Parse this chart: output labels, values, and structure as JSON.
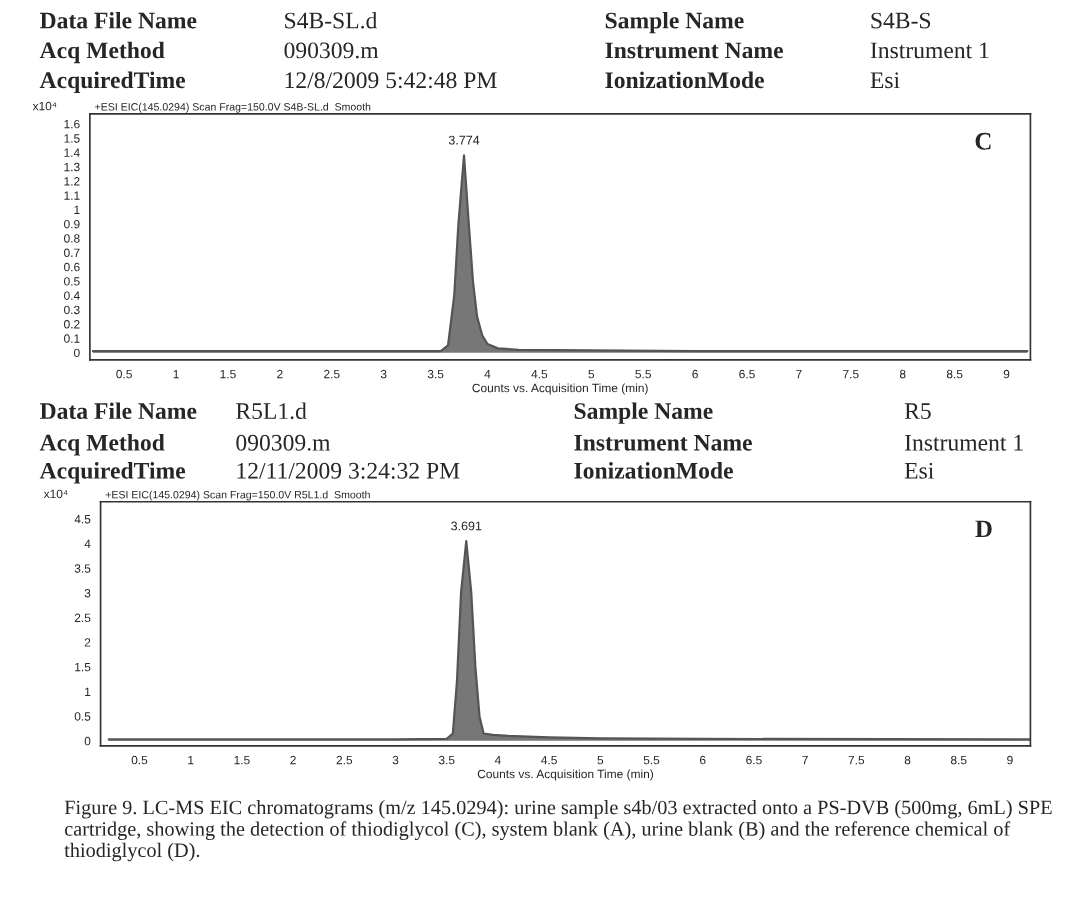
{
  "chart_data": [
    {
      "type": "area",
      "title": "+ESI EIC(145.0294) Scan Frag=150.0V S4B-SL.d  Smooth",
      "xlabel": "Counts vs. Acquisition Time (min)",
      "ylabel": "x10⁴",
      "annotations": [
        "Data File Name",
        "S4B-SL.d",
        "Sample Name",
        "S4B-S",
        "Acq Method",
        "090309.m",
        "Instrument Name",
        "Instrument 1",
        "AcquiredTime",
        "12/8/2009 5:42:48 PM",
        "IonizationMode",
        "Esi",
        "C",
        {
          "text": "3.774",
          "x": 3.774,
          "y": 1.38
        }
      ],
      "series": [
        {
          "color": "#555555",
          "x": [
            0.2,
            1.5,
            3.0,
            3.55,
            3.62,
            3.68,
            3.72,
            3.774,
            3.82,
            3.86,
            3.9,
            3.95,
            4.0,
            4.1,
            4.3,
            6.0,
            9.2
          ],
          "values": [
            0.01,
            0.01,
            0.01,
            0.01,
            0.05,
            0.4,
            0.9,
            1.38,
            0.9,
            0.5,
            0.25,
            0.12,
            0.06,
            0.03,
            0.02,
            0.01,
            0.01
          ]
        }
      ],
      "xlim": [
        0.17,
        9.23
      ],
      "xticks": [
        0.5,
        1,
        1.5,
        2,
        2.5,
        3,
        3.5,
        4,
        4.5,
        5,
        5.5,
        6,
        6.5,
        7,
        7.5,
        8,
        8.5,
        9
      ],
      "ylim": [
        -0.05,
        1.67
      ],
      "yticks": [
        0,
        0.1,
        0.2,
        0.3,
        0.4,
        0.5,
        0.6,
        0.7,
        0.8,
        0.9,
        1,
        1.1,
        1.2,
        1.3,
        1.4,
        1.5,
        1.6
      ],
      "grid": false,
      "marker": "none"
    },
    {
      "type": "area",
      "title": "+ESI EIC(145.0294) Scan Frag=150.0V R5L1.d  Smooth",
      "xlabel": "Counts vs. Acquisition Time (min)",
      "ylabel": "x10⁴",
      "annotations": [
        "Data File Name",
        "R5L1.d",
        "Sample Name",
        "R5",
        "Acq Method",
        "090309.m",
        "Instrument Name",
        "Instrument 1",
        "AcquiredTime",
        "12/11/2009 3:24:32 PM",
        "IonizationMode",
        "Esi",
        "D",
        "Figure 9. LC-MS EIC chromatograms (m/z 145.0294): urine sample s4b/03 extracted onto a PS-DVB (500mg, 6mL) SPE cartridge, showing the detection of thiodiglycol (C), system blank (A), urine blank (B) and the reference chemical of thiodiglycol (D).",
        {
          "text": "3.691",
          "x": 3.691,
          "y": 4.05
        }
      ],
      "series": [
        {
          "color": "#555555",
          "x": [
            0.2,
            1.5,
            3.0,
            3.5,
            3.56,
            3.6,
            3.64,
            3.691,
            3.74,
            3.78,
            3.82,
            3.86,
            3.95,
            4.1,
            4.5,
            5.0,
            6.0,
            9.2
          ],
          "values": [
            0.03,
            0.03,
            0.03,
            0.04,
            0.15,
            1.2,
            3.0,
            4.05,
            3.0,
            1.5,
            0.5,
            0.15,
            0.12,
            0.1,
            0.07,
            0.05,
            0.04,
            0.03
          ]
        }
      ],
      "xlim": [
        0.12,
        9.2
      ],
      "xticks": [
        0.5,
        1,
        1.5,
        2,
        2.5,
        3,
        3.5,
        4,
        4.5,
        5,
        5.5,
        6,
        6.5,
        7,
        7.5,
        8,
        8.5,
        9
      ],
      "ylim": [
        -0.1,
        4.85
      ],
      "yticks": [
        0,
        0.5,
        1,
        1.5,
        2,
        2.5,
        3,
        3.5,
        4,
        4.5
      ],
      "grid": false,
      "marker": "none"
    }
  ]
}
